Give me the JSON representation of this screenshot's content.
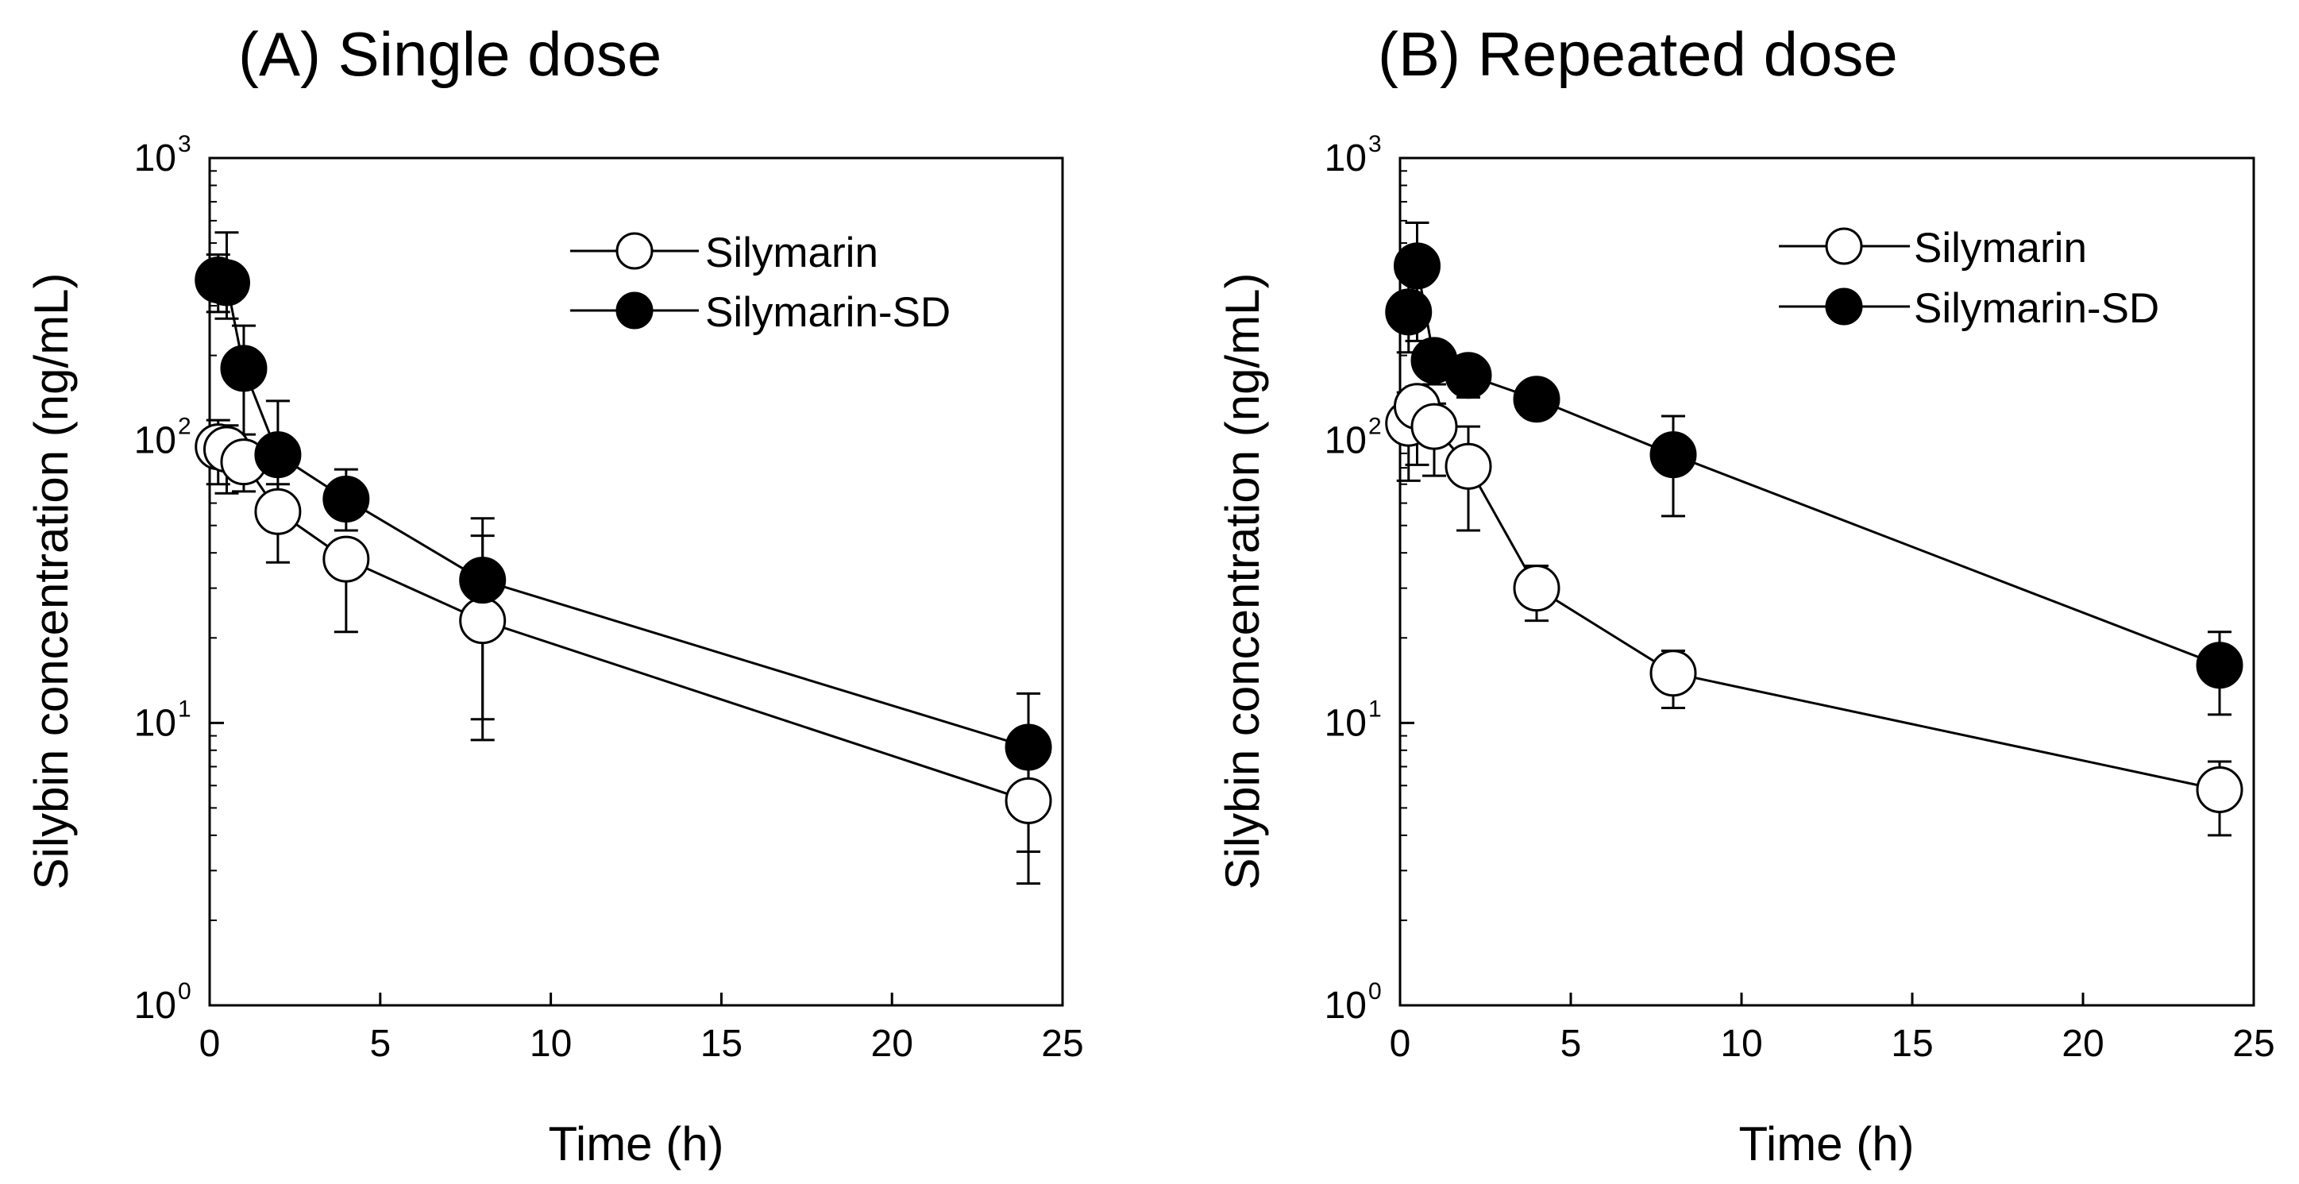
{
  "chart_data": [
    {
      "type": "line",
      "title": "(A) Single dose",
      "xlabel": "Time (h)",
      "ylabel": "Silybin concentration (ng/mL)",
      "xscale": "linear",
      "yscale": "log",
      "xlim": [
        0,
        25
      ],
      "ylim": [
        1,
        1000
      ],
      "xticks": [
        0,
        5,
        10,
        15,
        20,
        25
      ],
      "yticks": [
        {
          "base": "10",
          "exp": "0",
          "value": 1
        },
        {
          "base": "10",
          "exp": "1",
          "value": 10
        },
        {
          "base": "10",
          "exp": "2",
          "value": 100
        },
        {
          "base": "10",
          "exp": "3",
          "value": 1000
        }
      ],
      "legend_position": "top-right",
      "series": [
        {
          "name": "Silymarin",
          "marker": "open-circle",
          "x": [
            0.25,
            0.5,
            1,
            2,
            4,
            8,
            24
          ],
          "y": [
            95,
            93,
            84,
            56,
            38,
            23,
            5.3
          ],
          "err_low": [
            70,
            65,
            66,
            37,
            21,
            8.7,
            2.7
          ],
          "err_high": [
            118,
            113,
            98,
            70,
            44,
            46,
            8.0
          ]
        },
        {
          "name": "Silymarin-SD",
          "marker": "filled-circle",
          "x": [
            0.25,
            0.5,
            1,
            2,
            4,
            8,
            24
          ],
          "y": [
            370,
            362,
            180,
            89,
            62,
            32,
            8.2
          ],
          "err_low": [
            285,
            270,
            105,
            50,
            48,
            10.3,
            3.5
          ],
          "err_high": [
            455,
            545,
            255,
            138,
            79,
            53,
            12.7
          ]
        }
      ]
    },
    {
      "type": "line",
      "title": "(B) Repeated dose",
      "xlabel": "Time (h)",
      "ylabel": "Silybin concentration (ng/mL)",
      "xscale": "linear",
      "yscale": "log",
      "xlim": [
        0,
        25
      ],
      "ylim": [
        1,
        1000
      ],
      "xticks": [
        0,
        5,
        10,
        15,
        20,
        25
      ],
      "yticks": [
        {
          "base": "10",
          "exp": "0",
          "value": 1
        },
        {
          "base": "10",
          "exp": "1",
          "value": 10
        },
        {
          "base": "10",
          "exp": "2",
          "value": 100
        },
        {
          "base": "10",
          "exp": "3",
          "value": 1000
        }
      ],
      "legend_position": "top-right",
      "series": [
        {
          "name": "Silymarin",
          "marker": "open-circle",
          "x": [
            0.25,
            0.5,
            1,
            2,
            4,
            8,
            24
          ],
          "y": [
            115,
            132,
            112,
            81,
            30,
            15,
            5.8
          ],
          "err_low": [
            72,
            82,
            75,
            48,
            23,
            11.3,
            4.0
          ],
          "err_high": [
            148,
            155,
            135,
            112,
            36,
            18,
            7.3
          ]
        },
        {
          "name": "Silymarin-SD",
          "marker": "filled-circle",
          "x": [
            0.25,
            0.5,
            1,
            2,
            4,
            8,
            24
          ],
          "y": [
            285,
            415,
            192,
            170,
            140,
            89,
            16
          ],
          "err_low": [
            205,
            225,
            158,
            142,
            125,
            54,
            10.7
          ],
          "err_high": [
            380,
            590,
            210,
            198,
            158,
            122,
            21
          ]
        }
      ]
    }
  ]
}
